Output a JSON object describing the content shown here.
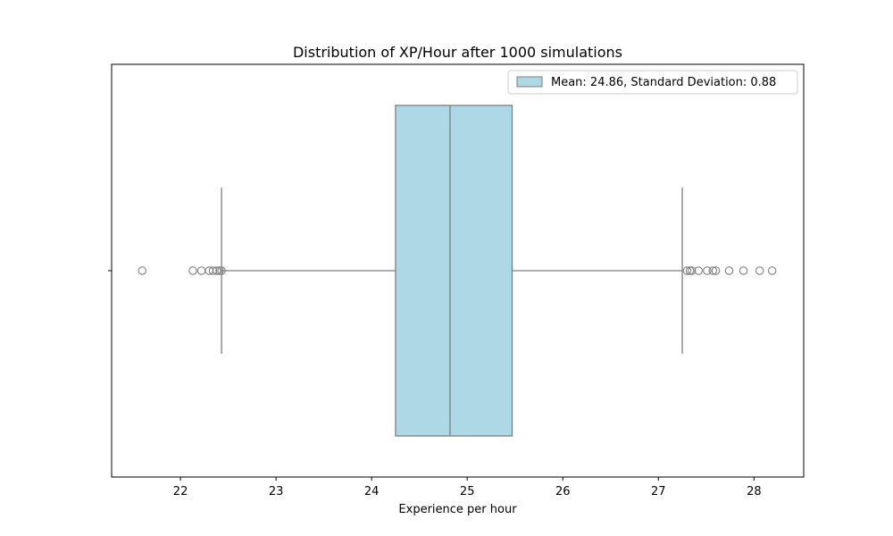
{
  "chart_data": {
    "type": "boxplot",
    "title": "Distribution of XP/Hour after 1000 simulations",
    "xlabel": "Experience per hour",
    "ylabel": "",
    "xlim": [
      21.28,
      28.52
    ],
    "xticks": [
      22,
      23,
      24,
      25,
      26,
      27,
      28
    ],
    "grid": false,
    "legend": {
      "position": "top-right",
      "entries": [
        "Mean: 24.86, Standard Deviation: 0.88"
      ]
    },
    "box": {
      "q1": 24.25,
      "median": 24.82,
      "q3": 25.47,
      "whisker_low": 22.43,
      "whisker_high": 27.25,
      "fill_color": "#add8e6",
      "edge_color": "#7f7f7f"
    },
    "outliers": [
      21.6,
      22.13,
      22.22,
      22.3,
      22.34,
      22.38,
      22.41,
      22.43,
      27.3,
      27.33,
      27.35,
      27.42,
      27.51,
      27.57,
      27.6,
      27.74,
      27.89,
      28.06,
      28.19
    ]
  }
}
